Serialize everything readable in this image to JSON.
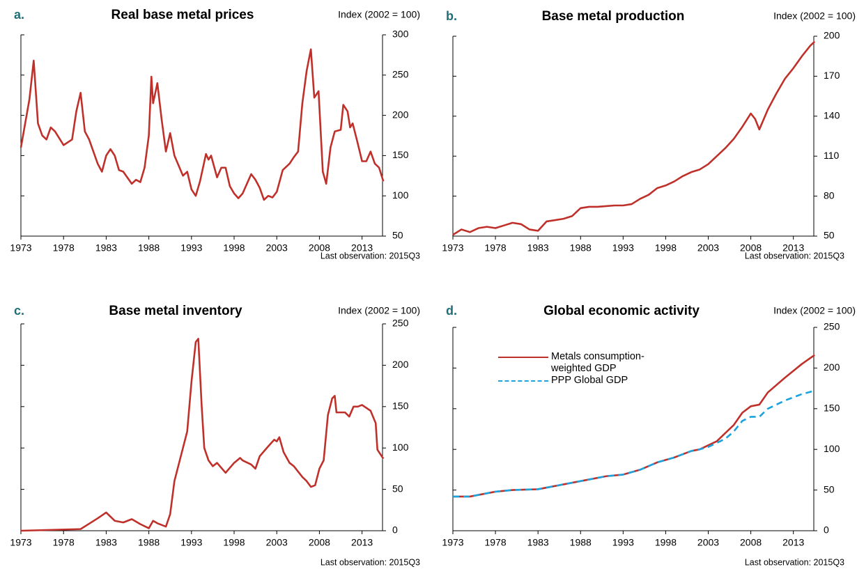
{
  "chart_data": [
    {
      "type": "line",
      "panel_label": "a.",
      "title": "Real base metal prices",
      "unit_label": "Index (2002 = 100)",
      "note": "Last observation:  2015Q3",
      "color": "#c0302a",
      "x": [
        1973,
        1974,
        1974.5,
        1975,
        1975.5,
        1976,
        1976.5,
        1977,
        1978,
        1979,
        1979.5,
        1980,
        1980.5,
        1981,
        1982,
        1982.5,
        1983,
        1983.5,
        1984,
        1984.5,
        1985,
        1986,
        1986.5,
        1987,
        1987.5,
        1988,
        1988.3,
        1988.5,
        1989,
        1989.5,
        1990,
        1990.5,
        1991,
        1992,
        1992.5,
        1993,
        1993.5,
        1994,
        1994.7,
        1995,
        1995.3,
        1996,
        1996.5,
        1997,
        1997.5,
        1998,
        1998.5,
        1999,
        2000,
        2000.5,
        2001,
        2001.5,
        2002,
        2002.5,
        2003,
        2003.7,
        2004.5,
        2005,
        2005.5,
        2006,
        2006.5,
        2007,
        2007.4,
        2007.9,
        2008.4,
        2008.8,
        2009.3,
        2009.8,
        2010.5,
        2010.8,
        2011.3,
        2011.6,
        2011.9,
        2012.5,
        2013,
        2013.5,
        2014,
        2014.5,
        2015,
        2015.5
      ],
      "values": [
        160,
        220,
        268,
        190,
        175,
        170,
        185,
        180,
        163,
        170,
        205,
        228,
        180,
        170,
        140,
        130,
        150,
        158,
        150,
        132,
        130,
        115,
        120,
        117,
        135,
        175,
        248,
        215,
        240,
        195,
        155,
        178,
        150,
        125,
        130,
        108,
        100,
        118,
        152,
        145,
        150,
        123,
        135,
        135,
        112,
        103,
        97,
        103,
        127,
        120,
        110,
        95,
        100,
        98,
        105,
        132,
        140,
        148,
        155,
        215,
        255,
        282,
        222,
        230,
        130,
        115,
        160,
        180,
        182,
        213,
        205,
        185,
        190,
        165,
        143,
        143,
        155,
        140,
        135,
        118
      ],
      "xlim": [
        1973,
        2015.4
      ],
      "xticks": [
        1973,
        1978,
        1983,
        1988,
        1993,
        1998,
        2003,
        2008,
        2013
      ],
      "ylim": [
        50,
        300
      ],
      "yticks": [
        50,
        100,
        150,
        200,
        250,
        300
      ]
    },
    {
      "type": "line",
      "panel_label": "b.",
      "title": "Base metal production",
      "unit_label": "Index (2002 = 100)",
      "note": "Last observation:  2015Q3",
      "color": "#c0302a",
      "x": [
        1973,
        1974,
        1975,
        1976,
        1977,
        1978,
        1979,
        1980,
        1981,
        1982,
        1983,
        1984,
        1985,
        1986,
        1987,
        1988,
        1989,
        1990,
        1991,
        1992,
        1993,
        1994,
        1995,
        1996,
        1997,
        1998,
        1999,
        2000,
        2001,
        2002,
        2003,
        2004,
        2005,
        2006,
        2007,
        2008,
        2008.5,
        2009,
        2010,
        2011,
        2012,
        2013,
        2014,
        2015,
        2015.5
      ],
      "values": [
        51,
        55,
        53,
        56,
        57,
        56,
        58,
        60,
        59,
        55,
        54,
        61,
        62,
        63,
        65,
        71,
        72,
        72,
        72.5,
        73,
        73,
        74,
        78,
        81,
        86,
        88,
        91,
        95,
        98,
        100,
        104,
        110,
        116,
        123,
        132,
        142,
        138,
        130,
        145,
        157,
        168,
        176,
        185,
        193,
        196
      ],
      "xlim": [
        1973,
        2015.4
      ],
      "xticks": [
        1973,
        1978,
        1983,
        1988,
        1993,
        1998,
        2003,
        2008,
        2013
      ],
      "ylim": [
        50,
        200
      ],
      "yticks": [
        50,
        80,
        110,
        140,
        170,
        200
      ]
    },
    {
      "type": "line",
      "panel_label": "c.",
      "title": "Base metal inventory",
      "unit_label": "Index (2002 = 100)",
      "note": "Last observation:  2015Q3",
      "color": "#c0302a",
      "x": [
        1973,
        1980,
        1982,
        1983,
        1984,
        1985,
        1986,
        1987,
        1988,
        1988.5,
        1989,
        1990,
        1990.5,
        1991,
        1992,
        1992.5,
        1993,
        1993.5,
        1993.8,
        1994.2,
        1994.5,
        1995,
        1995.5,
        1996,
        1997,
        1998,
        1998.7,
        1999,
        2000,
        2000.5,
        2001,
        2002,
        2002.7,
        2003,
        2003.3,
        2003.8,
        2004.5,
        2005,
        2006,
        2006.5,
        2007,
        2007.5,
        2008,
        2008.5,
        2009,
        2009.5,
        2009.8,
        2010,
        2011,
        2011.5,
        2012,
        2012.5,
        2013,
        2014,
        2014.6,
        2014.8,
        2015.5
      ],
      "values": [
        0,
        2,
        15,
        22,
        12,
        10,
        14,
        8,
        3,
        12,
        9,
        5,
        20,
        60,
        100,
        120,
        180,
        228,
        232,
        150,
        100,
        85,
        78,
        82,
        70,
        82,
        88,
        85,
        80,
        75,
        90,
        102,
        110,
        108,
        113,
        95,
        82,
        78,
        65,
        60,
        53,
        55,
        75,
        85,
        140,
        160,
        163,
        143,
        143,
        138,
        150,
        150,
        152,
        145,
        130,
        98,
        87
      ],
      "xlim": [
        1973,
        2015.4
      ],
      "xticks": [
        1973,
        1978,
        1983,
        1988,
        1993,
        1998,
        2003,
        2008,
        2013
      ],
      "ylim": [
        0,
        250
      ],
      "yticks": [
        0,
        50,
        100,
        150,
        200,
        250
      ]
    },
    {
      "type": "line",
      "panel_label": "d.",
      "title": "Global economic activity",
      "unit_label": "Index (2002 = 100)",
      "note": "Last observation:  2015Q3",
      "legend": "upper left",
      "x": [
        1973,
        1975,
        1978,
        1980,
        1983,
        1986,
        1989,
        1991,
        1993,
        1995,
        1997,
        1999,
        2001,
        2002,
        2003,
        2004,
        2005,
        2006,
        2007,
        2008,
        2009,
        2010,
        2012,
        2014,
        2015.5
      ],
      "series": [
        {
          "name": "Metals consumption-weighted GDP",
          "color": "#c0302a",
          "line_style": "solid",
          "values": [
            42,
            42,
            48,
            50,
            51,
            57,
            63,
            67,
            69,
            75,
            84,
            90,
            98,
            100,
            105,
            110,
            120,
            130,
            145,
            153,
            155,
            170,
            188,
            205,
            216
          ]
        },
        {
          "name": "PPP Global GDP",
          "color": "#1aa3dd",
          "line_style": "dashed",
          "values": [
            42,
            42,
            48,
            50,
            51,
            57,
            63,
            67,
            69,
            75,
            84,
            90,
            98,
            100,
            103,
            108,
            113,
            122,
            135,
            140,
            140,
            150,
            160,
            168,
            172
          ]
        }
      ],
      "xlim": [
        1973,
        2015.4
      ],
      "xticks": [
        1973,
        1978,
        1983,
        1988,
        1993,
        1998,
        2003,
        2008,
        2013
      ],
      "ylim": [
        0,
        250
      ],
      "yticks": [
        0,
        50,
        100,
        150,
        200,
        250
      ]
    }
  ]
}
